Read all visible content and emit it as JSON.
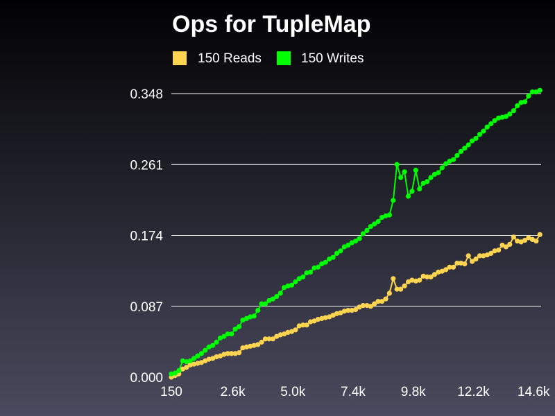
{
  "chart_data": {
    "type": "line",
    "title": "Ops for TupleMap",
    "xlabel": "",
    "ylabel": "",
    "xlim": [
      150,
      14900
    ],
    "ylim": [
      0,
      0.348
    ],
    "x_ticks": [
      150,
      2600,
      5000,
      7400,
      9800,
      12200,
      14600
    ],
    "x_tick_labels": [
      "150",
      "2.6k",
      "5.0k",
      "7.4k",
      "9.8k",
      "12.2k",
      "14.6k"
    ],
    "y_ticks": [
      0.0,
      0.087,
      0.174,
      0.261,
      0.348
    ],
    "y_tick_labels": [
      "0.000",
      "0.087",
      "0.174",
      "0.261",
      "0.348"
    ],
    "grid": "horizontal",
    "legend_position": "top",
    "series": [
      {
        "name": "150 Reads",
        "color": "#ffd451",
        "x": [
          150,
          300,
          450,
          600,
          750,
          900,
          1050,
          1200,
          1350,
          1500,
          1650,
          1800,
          1950,
          2100,
          2250,
          2400,
          2550,
          2700,
          2850,
          3000,
          3150,
          3300,
          3450,
          3600,
          3750,
          3900,
          4050,
          4200,
          4350,
          4500,
          4650,
          4800,
          4950,
          5100,
          5250,
          5400,
          5550,
          5700,
          5850,
          6000,
          6150,
          6300,
          6450,
          6600,
          6750,
          6900,
          7050,
          7200,
          7350,
          7500,
          7650,
          7800,
          7950,
          8100,
          8250,
          8400,
          8550,
          8700,
          8850,
          9000,
          9150,
          9300,
          9450,
          9600,
          9750,
          9900,
          10050,
          10200,
          10350,
          10500,
          10650,
          10800,
          10950,
          11100,
          11250,
          11400,
          11550,
          11700,
          11850,
          12000,
          12150,
          12300,
          12450,
          12600,
          12750,
          12900,
          13050,
          13200,
          13350,
          13500,
          13650,
          13800,
          13950,
          14100,
          14250,
          14400,
          14550,
          14700,
          14850
        ],
        "values": [
          0.0,
          0.002,
          0.004,
          0.01,
          0.012,
          0.015,
          0.016,
          0.017,
          0.018,
          0.02,
          0.022,
          0.023,
          0.025,
          0.026,
          0.028,
          0.029,
          0.029,
          0.029,
          0.03,
          0.036,
          0.037,
          0.038,
          0.039,
          0.04,
          0.043,
          0.047,
          0.047,
          0.047,
          0.05,
          0.052,
          0.053,
          0.055,
          0.056,
          0.058,
          0.063,
          0.064,
          0.064,
          0.068,
          0.069,
          0.071,
          0.072,
          0.073,
          0.074,
          0.076,
          0.078,
          0.079,
          0.081,
          0.082,
          0.082,
          0.083,
          0.086,
          0.088,
          0.088,
          0.087,
          0.09,
          0.093,
          0.093,
          0.096,
          0.103,
          0.121,
          0.108,
          0.108,
          0.112,
          0.117,
          0.119,
          0.118,
          0.119,
          0.124,
          0.123,
          0.123,
          0.126,
          0.129,
          0.13,
          0.132,
          0.135,
          0.135,
          0.14,
          0.14,
          0.139,
          0.149,
          0.142,
          0.145,
          0.149,
          0.149,
          0.15,
          0.152,
          0.155,
          0.156,
          0.162,
          0.16,
          0.163,
          0.172,
          0.167,
          0.166,
          0.168,
          0.171,
          0.169,
          0.167,
          0.175
        ]
      },
      {
        "name": "150 Writes",
        "color": "#00ff00",
        "x": [
          150,
          300,
          450,
          600,
          750,
          900,
          1050,
          1200,
          1350,
          1500,
          1650,
          1800,
          1950,
          2100,
          2250,
          2400,
          2550,
          2700,
          2850,
          3000,
          3150,
          3300,
          3450,
          3600,
          3750,
          3900,
          4050,
          4200,
          4350,
          4500,
          4650,
          4800,
          4950,
          5100,
          5250,
          5400,
          5550,
          5700,
          5850,
          6000,
          6150,
          6300,
          6450,
          6600,
          6750,
          6900,
          7050,
          7200,
          7350,
          7500,
          7650,
          7800,
          7950,
          8100,
          8250,
          8400,
          8550,
          8700,
          8850,
          9000,
          9150,
          9300,
          9450,
          9600,
          9750,
          9900,
          10050,
          10200,
          10350,
          10500,
          10650,
          10800,
          10950,
          11100,
          11250,
          11400,
          11550,
          11700,
          11850,
          12000,
          12150,
          12300,
          12450,
          12600,
          12750,
          12900,
          13050,
          13200,
          13350,
          13500,
          13650,
          13800,
          13950,
          14100,
          14250,
          14400,
          14550,
          14700,
          14850
        ],
        "values": [
          0.004,
          0.005,
          0.008,
          0.02,
          0.019,
          0.02,
          0.023,
          0.026,
          0.029,
          0.033,
          0.037,
          0.039,
          0.043,
          0.048,
          0.05,
          0.053,
          0.053,
          0.059,
          0.062,
          0.07,
          0.072,
          0.074,
          0.075,
          0.082,
          0.09,
          0.09,
          0.094,
          0.096,
          0.099,
          0.103,
          0.11,
          0.112,
          0.113,
          0.117,
          0.121,
          0.123,
          0.128,
          0.129,
          0.134,
          0.135,
          0.139,
          0.141,
          0.145,
          0.147,
          0.152,
          0.155,
          0.16,
          0.162,
          0.165,
          0.167,
          0.17,
          0.176,
          0.18,
          0.185,
          0.188,
          0.191,
          0.196,
          0.198,
          0.199,
          0.217,
          0.261,
          0.245,
          0.252,
          0.222,
          0.228,
          0.254,
          0.231,
          0.238,
          0.24,
          0.245,
          0.249,
          0.251,
          0.257,
          0.262,
          0.265,
          0.267,
          0.272,
          0.277,
          0.281,
          0.285,
          0.29,
          0.293,
          0.298,
          0.302,
          0.307,
          0.311,
          0.315,
          0.318,
          0.319,
          0.32,
          0.323,
          0.327,
          0.333,
          0.337,
          0.338,
          0.345,
          0.35,
          0.35,
          0.352
        ]
      }
    ]
  }
}
